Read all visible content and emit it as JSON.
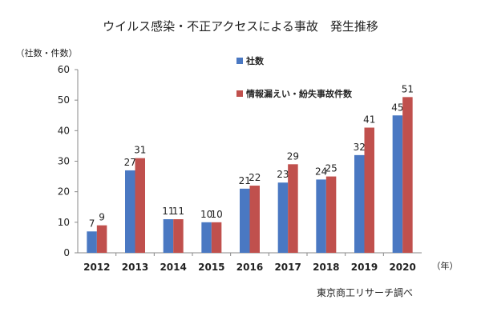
{
  "chart_data": {
    "type": "bar",
    "title": "ウイルス感染・不正アクセスによる事故　発生推移",
    "ylabel": "（社数・件数）",
    "xlabel": "（年）",
    "source": "東京商工リサーチ調べ",
    "categories": [
      "2012",
      "2013",
      "2014",
      "2015",
      "2016",
      "2017",
      "2018",
      "2019",
      "2020"
    ],
    "series": [
      {
        "name": "社数",
        "values": [
          7,
          27,
          11,
          10,
          21,
          23,
          24,
          32,
          45
        ],
        "color": "#4a78c2"
      },
      {
        "name": "情報漏えい・紛失事故件数",
        "values": [
          9,
          31,
          11,
          10,
          22,
          29,
          25,
          41,
          51
        ],
        "color": "#c0504d"
      }
    ],
    "ylim": [
      0,
      60
    ],
    "yticks": [
      0,
      10,
      20,
      30,
      40,
      50,
      60
    ],
    "grid": false,
    "legend": "top-right"
  }
}
